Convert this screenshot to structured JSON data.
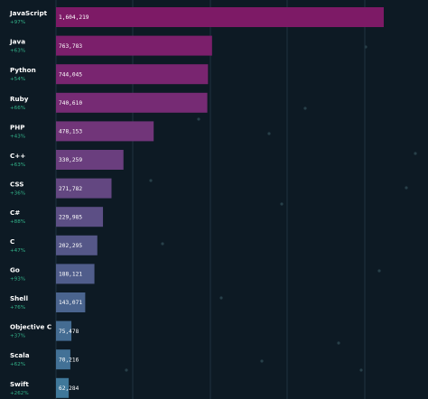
{
  "chart_data": {
    "type": "bar",
    "orientation": "horizontal",
    "grid": true,
    "xlim": [
      0,
      1750000
    ],
    "categories": [
      "JavaScript",
      "Java",
      "Python",
      "Ruby",
      "PHP",
      "C++",
      "CSS",
      "C#",
      "C",
      "Go",
      "Shell",
      "Objective C",
      "Scala",
      "Swift"
    ],
    "values": [
      1604219,
      763783,
      744045,
      740610,
      478153,
      330259,
      271782,
      229985,
      202295,
      188121,
      143071,
      75478,
      70216,
      62284
    ],
    "value_labels": [
      "1,604,219",
      "763,783",
      "744,045",
      "740,610",
      "478,153",
      "330,259",
      "271,782",
      "229,985",
      "202,295",
      "188,121",
      "143,071",
      "75,478",
      "70,216",
      "62,284"
    ],
    "growth": [
      "+97%",
      "+63%",
      "+54%",
      "+66%",
      "+43%",
      "+63%",
      "+36%",
      "+88%",
      "+47%",
      "+93%",
      "+76%",
      "+37%",
      "+62%",
      "+262%"
    ],
    "colors": [
      "#7d1a66",
      "#7b1f6b",
      "#792570",
      "#762b74",
      "#713579",
      "#6a3e7e",
      "#634781",
      "#5c4f85",
      "#555788",
      "#505d8b",
      "#4a648e",
      "#446c92",
      "#427196",
      "#3f789a"
    ]
  }
}
